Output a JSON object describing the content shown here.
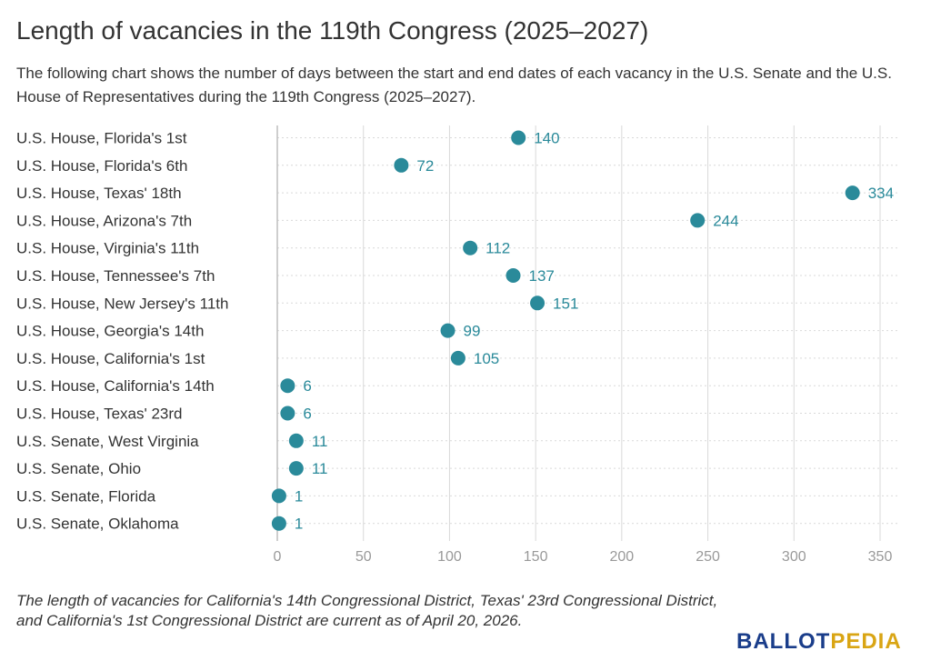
{
  "title": "Length of vacancies in the 119th Congress (2025–2027)",
  "subtitle": "The following chart shows the number of days between the start and end dates of each vacancy in the U.S. Senate and the U.S. House of Representatives during the 119th Congress (2025–2027).",
  "footnote": "The length of vacancies for California's 14th Congressional District, Texas' 23rd Congressional District, and California's 1st Congressional District are current as of April 20, 2026.",
  "logo": {
    "part1": "BALLOT",
    "part2": "PEDIA"
  },
  "colors": {
    "dot": "#2a8a9a",
    "label": "#2a8a9a",
    "grid": "#d9d9d9",
    "zero_axis": "#bdbdbd",
    "tick_text": "#999999",
    "category_text": "#333333"
  },
  "chart_data": {
    "type": "scatter",
    "title": "Length of vacancies in the 119th Congress (2025–2027)",
    "xlabel": "",
    "ylabel": "",
    "xlim": [
      0,
      350
    ],
    "xticks": [
      0,
      50,
      100,
      150,
      200,
      250,
      300,
      350
    ],
    "grid": true,
    "categories": [
      "U.S. House, Florida's 1st",
      "U.S. House, Florida's 6th",
      "U.S. House, Texas' 18th",
      "U.S. House, Arizona's 7th",
      "U.S. House, Virginia's 11th",
      "U.S. House, Tennessee's 7th",
      "U.S. House, New Jersey's 11th",
      "U.S. House, Georgia's 14th",
      "U.S. House, California's 1st",
      "U.S. House, California's 14th",
      "U.S. House, Texas' 23rd",
      "U.S. Senate, West Virginia",
      "U.S. Senate, Ohio",
      "U.S. Senate, Florida",
      "U.S. Senate, Oklahoma"
    ],
    "values": [
      140,
      72,
      334,
      244,
      112,
      137,
      151,
      99,
      105,
      6,
      6,
      11,
      11,
      1,
      1
    ]
  }
}
